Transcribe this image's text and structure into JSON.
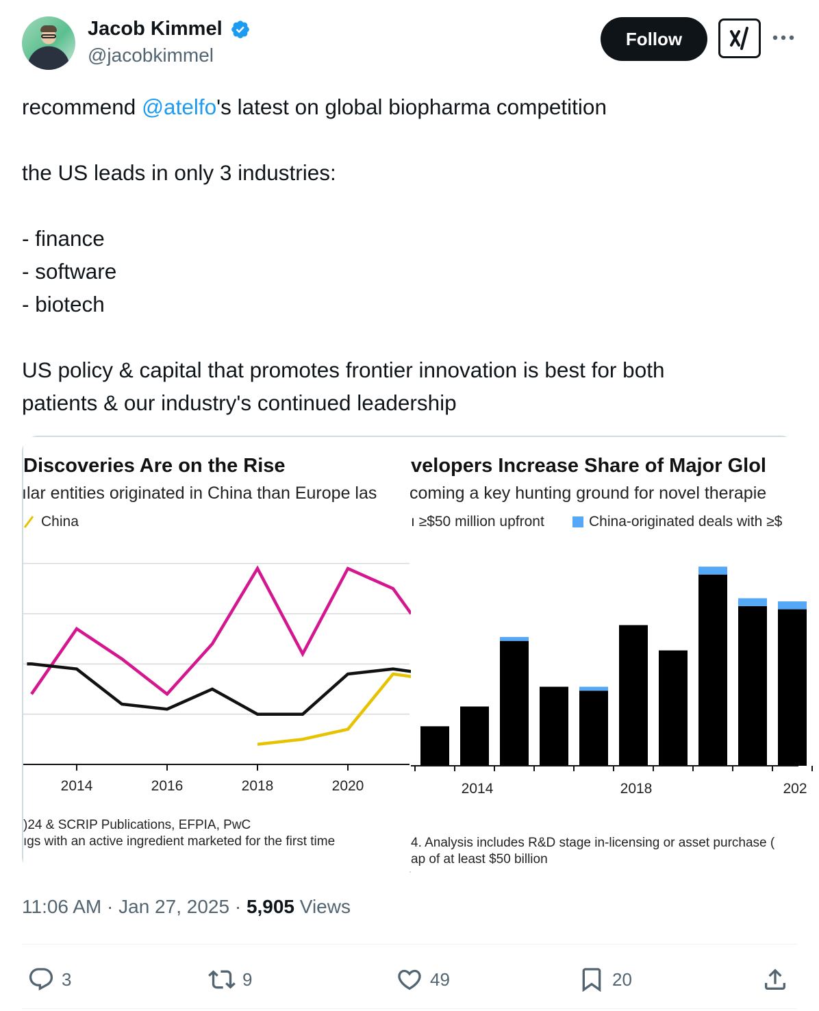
{
  "author": {
    "display_name": "Jacob Kimmel",
    "handle": "@jacobkimmel",
    "verified": true,
    "verified_color": "#1d9bf0"
  },
  "actions_top": {
    "follow_label": "Follow",
    "grok_icon": "grok-icon",
    "more_icon": "more-icon"
  },
  "tweet": {
    "line1_prefix": "recommend ",
    "line1_mention": "@atelfo",
    "line1_suffix": "'s latest on global biopharma competition",
    "line2": "the US leads in only 3 industries:",
    "line3": "- finance",
    "line4": "- software",
    "line5": "- biotech",
    "line6": "US policy & capital that promotes frontier innovation is best for both",
    "line7": "patients & our industry's continued leadership",
    "mention_color": "#1d9bf0"
  },
  "media": {
    "left": {
      "title": "Discoveries Are on the Rise",
      "subtitle": "ılar entities originated in China than Europe las",
      "legend_china": "China",
      "note1": ")24 & SCRIP Publications, EFPIA, PwC",
      "note2": "ıgs with an active ingredient marketed for the first time"
    },
    "right": {
      "title": "velopers Increase Share of Major Glol",
      "subtitle": "coming a key hunting ground for novel therapie",
      "legend_prefix": "ı ≥$50 million upfront",
      "legend_china": "China-originated deals with ≥$",
      "note1": "4. Analysis includes R&D stage in-licensing or asset purchase (",
      "note2": "ap of at least $50 billion"
    }
  },
  "chart_data": [
    {
      "type": "line",
      "title": "Discoveries Are on the Rise",
      "x_ticks": [
        "2014",
        "2016",
        "2018",
        "2020"
      ],
      "x": [
        2012.9,
        2013,
        2014,
        2015,
        2016,
        2017,
        2018,
        2019,
        2020,
        2021,
        2021.4
      ],
      "grid": true,
      "colors": {
        "magenta": "#d4168f",
        "black": "#111111",
        "China": "#e6c200"
      },
      "series": [
        {
          "name": "",
          "color": "#d4168f",
          "values": [
            null,
            1.4,
            2.7,
            2.1,
            1.4,
            2.4,
            3.9,
            2.2,
            3.9,
            3.5,
            3.0
          ]
        },
        {
          "name": "",
          "color": "#111111",
          "values": [
            2.0,
            2.0,
            1.9,
            1.2,
            1.1,
            1.5,
            1.0,
            1.0,
            1.8,
            1.9,
            1.85
          ]
        },
        {
          "name": "China",
          "color": "#e6c200",
          "values": [
            null,
            null,
            null,
            null,
            null,
            null,
            0.4,
            0.5,
            0.7,
            1.8,
            1.75
          ]
        }
      ],
      "ylim": [
        0,
        4.2
      ]
    },
    {
      "type": "bar",
      "title": "velopers Increase Share of Major Glol",
      "x_ticks": [
        "2014",
        "2018",
        "202"
      ],
      "categories": [
        "2013",
        "2014",
        "2015",
        "2016",
        "2017",
        "2018",
        "2019",
        "2020",
        "2021",
        "2022"
      ],
      "colors": {
        "base": "#000000",
        "China-originated deals with ≥$": "#55a8f5"
      },
      "series": [
        {
          "name": "ı ≥$50 million upfront",
          "values": [
            50,
            75,
            158,
            100,
            95,
            178,
            146,
            242,
            202,
            198
          ]
        },
        {
          "name": "China-originated deals with ≥$",
          "values": [
            0,
            0,
            5,
            0,
            5,
            0,
            0,
            10,
            10,
            10
          ]
        }
      ],
      "ylim": [
        0,
        260
      ]
    }
  ],
  "footer": {
    "time": "11:06 AM",
    "sep1": " · ",
    "date": "Jan 27, 2025",
    "sep2": " · ",
    "views_count": "5,905",
    "views_label": " Views"
  },
  "engagement": {
    "replies": "3",
    "reposts": "9",
    "likes": "49",
    "bookmarks": "20",
    "icon_color": "#536471"
  }
}
